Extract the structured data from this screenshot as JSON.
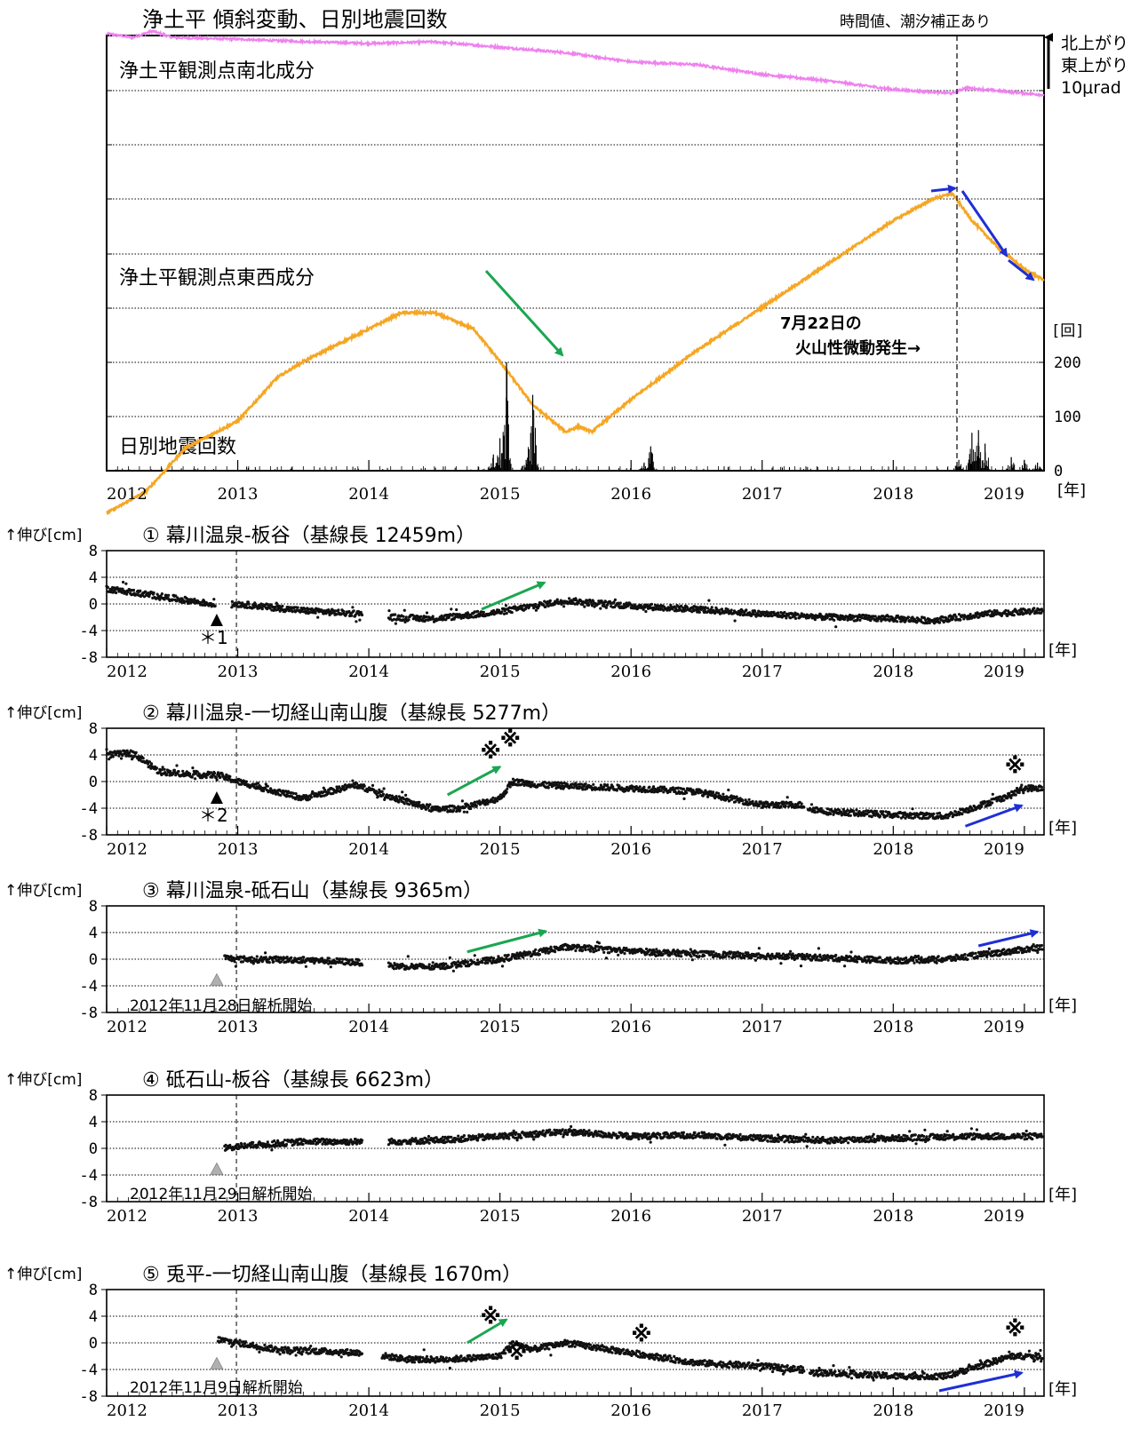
{
  "colors": {
    "ns_line": "#ee82ee",
    "ew_line": "#f5a623",
    "green_arrow": "#1aa650",
    "blue_arrow": "#1e2fd6",
    "grid": "#000000",
    "dots": "#111111",
    "triangle_gray": "#b0b0b0"
  },
  "top": {
    "title": "浄土平 傾斜変動、日別地震回数",
    "note": "時間値、潮汐補正あり",
    "ns_label": "浄土平観測点南北成分",
    "ew_label": "浄土平観測点東西成分",
    "eq_label": "日別地震回数",
    "legend_n": "北上がり",
    "legend_e": "東上がり",
    "legend_scale": "10μrad",
    "event_line1": "7月22日の",
    "event_line2": "火山性微動発生→",
    "count_unit": "[回]",
    "count_ticks": [
      "200",
      "100",
      "0"
    ],
    "year_unit": "[年]",
    "year_ticks": [
      "2012",
      "2013",
      "2014",
      "2015",
      "2016",
      "2017",
      "2018",
      "2019"
    ]
  },
  "panels_text": {
    "ylabel": "↑伸び[cm]",
    "year_unit": "[年]",
    "y_ticks": [
      "8",
      "4",
      "0",
      "-4",
      "-8"
    ],
    "year_ticks": [
      "2012",
      "2013",
      "2014",
      "2015",
      "2016",
      "2017",
      "2018",
      "2019"
    ],
    "p1_title": "① 幕川温泉-板谷（基線長 12459m）",
    "p1_note": "＊1",
    "p2_title": "② 幕川温泉-一切経山南山腹（基線長 5277m）",
    "p2_note": "＊2",
    "p3_title": "③ 幕川温泉-砥石山（基線長 9365m）",
    "p3_note": "2012年11月28日解析開始",
    "p4_title": "④ 砥石山-板谷（基線長 6623m）",
    "p4_note": "2012年11月29日解析開始",
    "p5_title": "⑤ 兎平-一切経山南山腹（基線長 1670m）",
    "p5_note": "2012年11月9日解析開始",
    "mark": "※"
  },
  "chart_data": [
    {
      "type": "line",
      "title": "浄土平 傾斜変動、日別地震回数",
      "xlim": [
        2012.0,
        2019.15
      ],
      "series": [
        {
          "name": "浄土平観測点南北成分",
          "x": [
            2012.0,
            2012.2,
            2012.35,
            2012.5,
            2013.0,
            2013.3,
            2014.0,
            2014.5,
            2015.0,
            2015.5,
            2016.0,
            2016.5,
            2017.0,
            2017.5,
            2018.0,
            2018.45,
            2018.55,
            2019.15
          ],
          "values": [
            0.85,
            0.78,
            0.9,
            0.78,
            0.75,
            0.72,
            0.67,
            0.7,
            0.6,
            0.5,
            0.33,
            0.28,
            0.1,
            -0.02,
            -0.18,
            -0.25,
            -0.15,
            -0.28
          ]
        },
        {
          "name": "浄土平観測点東西成分",
          "x": [
            2012.0,
            2012.3,
            2012.6,
            2013.0,
            2013.3,
            2013.5,
            2014.0,
            2014.25,
            2014.5,
            2014.8,
            2015.0,
            2015.25,
            2015.5,
            2015.6,
            2015.7,
            2016.0,
            2016.5,
            2017.0,
            2017.5,
            2018.0,
            2018.3,
            2018.45,
            2018.6,
            2018.8,
            2019.0,
            2019.15
          ],
          "values": [
            -8.0,
            -7.6,
            -6.8,
            -6.3,
            -5.5,
            -5.2,
            -4.6,
            -4.3,
            -4.3,
            -4.6,
            -5.2,
            -6.0,
            -6.5,
            -6.4,
            -6.5,
            -5.9,
            -5.0,
            -4.2,
            -3.4,
            -2.6,
            -2.2,
            -2.1,
            -2.6,
            -3.1,
            -3.5,
            -3.7
          ]
        },
        {
          "name": "日別地震回数",
          "x": [
            2014.95,
            2015.0,
            2015.05,
            2015.2,
            2015.25,
            2016.1,
            2016.15,
            2018.5,
            2018.6,
            2018.65,
            2018.7,
            2018.9,
            2019.0,
            2019.1
          ],
          "values": [
            30,
            60,
            200,
            20,
            140,
            15,
            45,
            20,
            70,
            75,
            50,
            25,
            20,
            15
          ]
        }
      ],
      "count_ticks": [
        0,
        100,
        200
      ]
    },
    {
      "type": "scatter",
      "title": "① 幕川温泉-板谷（基線長 12459m）",
      "ylabel": "↑伸び[cm]",
      "ylim": [
        -8,
        8
      ],
      "xlim": [
        2012.0,
        2019.15
      ],
      "x": [
        2012.0,
        2012.8,
        2012.85,
        2013.0,
        2013.5,
        2013.95,
        2014.15,
        2014.5,
        2015.0,
        2015.5,
        2016.0,
        2016.5,
        2017.0,
        2017.5,
        2018.0,
        2018.3,
        2018.7,
        2019.15
      ],
      "values": [
        2.3,
        0,
        -0.3,
        0,
        -1,
        -1.5,
        -2,
        -2.2,
        -1.2,
        0.5,
        -0.3,
        -0.8,
        -1.5,
        -2,
        -2.2,
        -2.5,
        -1.5,
        -1
      ]
    },
    {
      "type": "scatter",
      "title": "② 幕川温泉-一切経山南山腹（基線長 5277m）",
      "ylabel": "↑伸び[cm]",
      "ylim": [
        -8,
        8
      ],
      "xlim": [
        2012.0,
        2019.15
      ],
      "x": [
        2012.0,
        2012.2,
        2012.4,
        2012.7,
        2012.75,
        2012.85,
        2013.0,
        2013.5,
        2013.9,
        2014.2,
        2014.5,
        2014.7,
        2015.0,
        2015.1,
        2015.3,
        2015.7,
        2016.0,
        2016.5,
        2017.0,
        2017.3,
        2017.35,
        2017.5,
        2018.0,
        2018.4,
        2018.6,
        2018.9,
        2019.0,
        2019.15
      ],
      "values": [
        4,
        4.3,
        1.5,
        1,
        1,
        1,
        0,
        -2.5,
        -0.5,
        -2.5,
        -4.2,
        -4,
        -2.5,
        0,
        -0.5,
        -0.8,
        -1,
        -1.5,
        -3.5,
        -3.5,
        -4,
        -4.5,
        -5,
        -5.2,
        -4,
        -2,
        -1,
        -1
      ]
    },
    {
      "type": "scatter",
      "title": "③ 幕川温泉-砥石山（基線長 9365m）",
      "ylabel": "↑伸び[cm]",
      "ylim": [
        -8,
        8
      ],
      "xlim": [
        2012.0,
        2019.15
      ],
      "x": [
        2012.9,
        2013.0,
        2013.5,
        2013.95,
        2014.15,
        2014.5,
        2015.0,
        2015.5,
        2016.0,
        2016.5,
        2017.0,
        2017.5,
        2018.0,
        2018.4,
        2019.15
      ],
      "values": [
        0.2,
        0,
        -0.1,
        -0.5,
        -1,
        -1.2,
        0,
        1.8,
        1.2,
        0.8,
        0.5,
        0.2,
        -0.2,
        0,
        1.8
      ]
    },
    {
      "type": "scatter",
      "title": "④ 砥石山-板谷（基線長 6623m）",
      "ylabel": "↑伸び[cm]",
      "ylim": [
        -8,
        8
      ],
      "xlim": [
        2012.0,
        2019.15
      ],
      "x": [
        2012.9,
        2013.0,
        2013.5,
        2013.95,
        2014.15,
        2014.5,
        2015.0,
        2015.5,
        2016.0,
        2016.5,
        2017.0,
        2017.5,
        2018.0,
        2018.5,
        2019.15
      ],
      "values": [
        0,
        0.3,
        1,
        1,
        1,
        1.2,
        1.8,
        2.5,
        1.8,
        2,
        1.5,
        1.2,
        1.5,
        1.8,
        1.8
      ]
    },
    {
      "type": "scatter",
      "title": "⑤ 兎平-一切経山南山腹（基線長 1670m）",
      "ylabel": "↑伸び[cm]",
      "ylim": [
        -8,
        8
      ],
      "xlim": [
        2012.0,
        2019.15
      ],
      "x": [
        2012.85,
        2013.0,
        2013.3,
        2013.95,
        2014.3,
        2014.6,
        2015.0,
        2015.1,
        2015.25,
        2015.5,
        2016.0,
        2016.5,
        2017.0,
        2017.3,
        2017.35,
        2017.5,
        2018.0,
        2018.4,
        2018.9,
        2019.15
      ],
      "values": [
        0.5,
        0,
        -1,
        -1.5,
        -2.5,
        -2.5,
        -2,
        0,
        -1,
        0,
        -1.5,
        -3,
        -3.5,
        -4,
        -4.5,
        -4.5,
        -5,
        -5,
        -2,
        -2
      ]
    }
  ]
}
